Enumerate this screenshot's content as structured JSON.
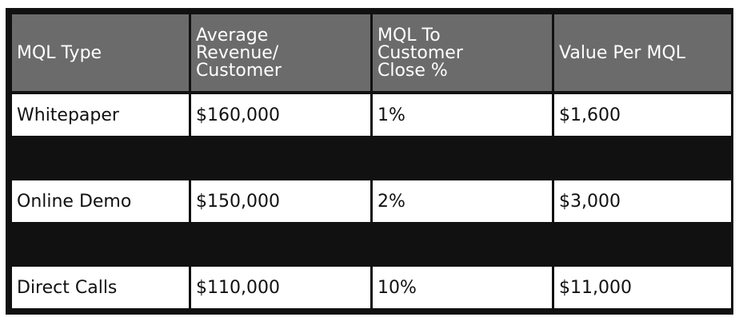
{
  "table": {
    "headers": [
      "MQL Type",
      "Average\nRevenue/\nCustomer",
      "MQL To\nCustomer\nClose %",
      "Value Per MQL"
    ],
    "rows": [
      [
        "Whitepaper",
        "$160,000",
        "1%",
        "$1,600"
      ],
      [
        "Online Demo",
        "$150,000",
        "2%",
        "$3,000"
      ],
      [
        "Direct Calls",
        "$110,000",
        "10%",
        "$11,000"
      ]
    ]
  },
  "colors": {
    "frame": "#111111",
    "header_bg": "#6b6b6b",
    "header_text": "#ffffff",
    "cell_bg": "#ffffff",
    "cell_text": "#111111"
  }
}
